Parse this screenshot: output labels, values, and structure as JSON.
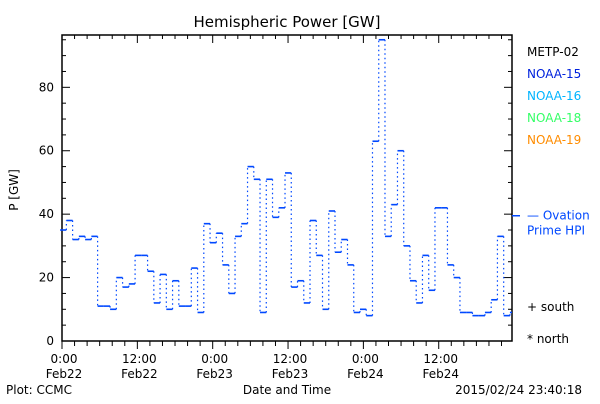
{
  "chart_data": {
    "type": "line",
    "title": "Hemispheric Power [GW]",
    "xlabel": "Date and Time",
    "ylabel": "P [GW]",
    "ylim": [
      0,
      96.5
    ],
    "xlim_hours": [
      0,
      71.67
    ],
    "yticks": [
      0,
      20,
      40,
      60,
      80
    ],
    "yminor_step": 5,
    "xtick_labels": [
      {
        "hour": 0,
        "time": "0:00",
        "date": "Feb22"
      },
      {
        "hour": 12,
        "time": "12:00",
        "date": "Feb22"
      },
      {
        "hour": 24,
        "time": "0:00",
        "date": "Feb23"
      },
      {
        "hour": 36,
        "time": "12:00",
        "date": "Feb23"
      },
      {
        "hour": 48,
        "time": "0:00",
        "date": "Feb24"
      },
      {
        "hour": 60,
        "time": "12:00",
        "date": "Feb24"
      }
    ],
    "xminor_step_hours": 2,
    "series": [
      {
        "name": "NOAA-15",
        "color": "#0048ff",
        "style": "step",
        "x_start_hours": -0.3,
        "bin_hours": 0.995,
        "values": [
          35,
          38,
          32,
          33,
          32,
          33,
          11,
          11,
          10,
          20,
          17,
          18,
          27,
          27,
          22,
          12,
          21,
          10,
          19,
          11,
          11,
          23,
          9,
          37,
          31,
          34,
          24,
          15,
          33,
          37,
          55,
          51,
          9,
          51,
          39,
          42,
          53,
          17,
          19,
          12,
          38,
          27,
          10,
          41,
          28,
          32,
          24,
          9,
          10,
          8,
          63,
          95,
          33,
          43,
          60,
          30,
          19,
          12,
          27,
          16,
          42,
          42,
          24,
          20,
          9,
          9,
          8,
          8,
          9,
          13,
          33,
          8,
          9
        ]
      }
    ],
    "hpi": {
      "value": 39.5,
      "label_line1": "— Ovation",
      "label_line2": "Prime HPI",
      "color": "#0048ff"
    },
    "legend": [
      {
        "name": "METP-02",
        "color": "#000000"
      },
      {
        "name": "NOAA-15",
        "color": "#0022dd"
      },
      {
        "name": "NOAA-16",
        "color": "#00b4ff"
      },
      {
        "name": "NOAA-18",
        "color": "#33ff66"
      },
      {
        "name": "NOAA-19",
        "color": "#ff8c00"
      }
    ],
    "legend_placement": "right",
    "markers_legend": {
      "south": "+ south",
      "north": "* north"
    }
  },
  "footer": {
    "left": "Plot: CCMC",
    "right": "2015/02/24 23:40:18"
  }
}
